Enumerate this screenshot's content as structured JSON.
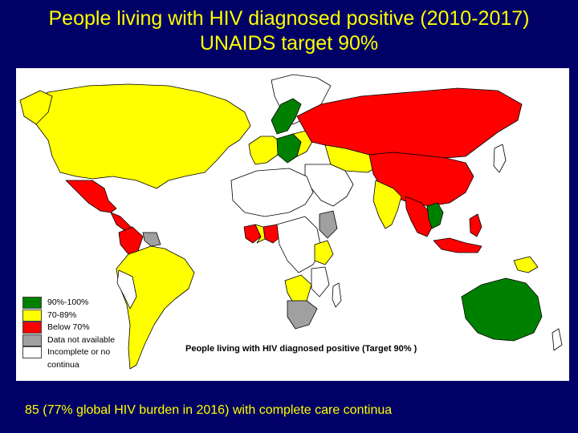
{
  "title": {
    "line1": "People living with HIV diagnosed positive (2010-2017)",
    "line2": "UNAIDS target 90%"
  },
  "legend": {
    "items": [
      {
        "label": "90%-100%",
        "color": "#008000"
      },
      {
        "label": "70-89%",
        "color": "#ffff00"
      },
      {
        "label": "Below 70%",
        "color": "#ff0000"
      },
      {
        "label": "Data not available",
        "color": "#a0a0a0"
      },
      {
        "label": "Incomplete or no continua",
        "color": "#ffffff"
      }
    ]
  },
  "map_caption": "People living with HIV diagnosed positive (Target 90% )",
  "footer": "85 (77% global HIV burden in 2016) with complete care continua",
  "colors": {
    "background": "#000066",
    "title_text": "#ffff00",
    "green": "#008000",
    "yellow": "#ffff00",
    "red": "#ff0000",
    "grey": "#a0a0a0",
    "white": "#ffffff"
  }
}
